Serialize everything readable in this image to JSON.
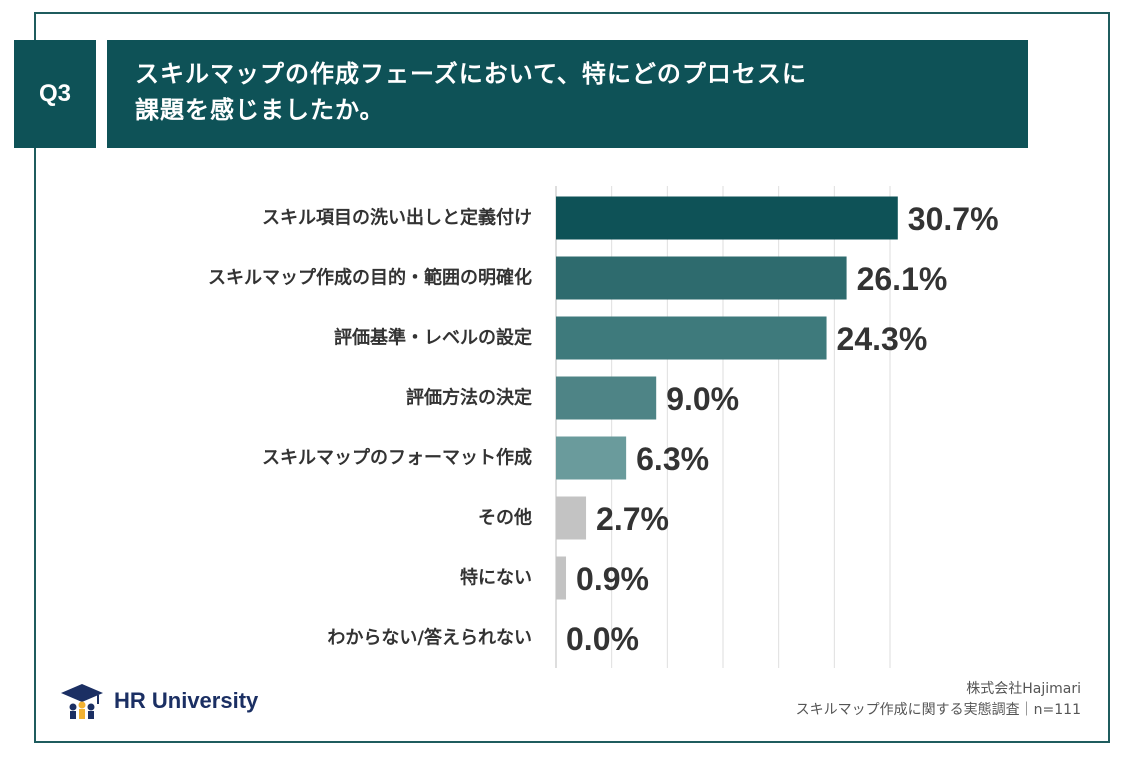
{
  "question": {
    "badge": "Q3",
    "title_lines": [
      "スキルマップの作成フェーズにおいて、特にどのプロセスに",
      "課題を感じましたか。"
    ]
  },
  "chart_data": {
    "type": "bar",
    "orientation": "horizontal",
    "categories": [
      "スキル項目の洗い出しと定義付け",
      "スキルマップ作成の目的・範囲の明確化",
      "評価基準・レベルの設定",
      "評価方法の決定",
      "スキルマップのフォーマット作成",
      "その他",
      "特にない",
      "わからない/答えられない"
    ],
    "values": [
      30.7,
      26.1,
      24.3,
      9.0,
      6.3,
      2.7,
      0.9,
      0.0
    ],
    "value_labels": [
      "30.7%",
      "26.1%",
      "24.3%",
      "9.0%",
      "6.3%",
      "2.7%",
      "0.9%",
      "0.0%"
    ],
    "bar_colors": [
      "#0e5257",
      "#2e6b6e",
      "#3e7a7c",
      "#4e8486",
      "#6a9b9c",
      "#c3c3c3",
      "#c3c3c3",
      "#c3c3c3"
    ],
    "xlim": [
      0,
      30
    ],
    "grid": true,
    "grid_step": 5
  },
  "footer": {
    "logo_text": "HR University",
    "source_line1": "株式会社Hajimari",
    "source_line2": "スキルマップ作成に関する実態調査｜n=111"
  }
}
